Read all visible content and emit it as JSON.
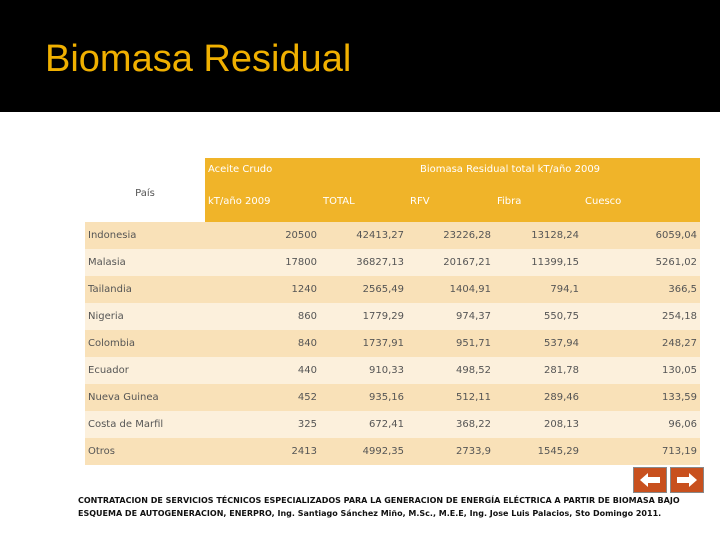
{
  "header": {
    "title": "Biomasa Residual"
  },
  "table": {
    "header": {
      "country": "País",
      "group1": "Aceite Crudo",
      "group2": "Biomasa Residual total kT/año 2009",
      "columns": [
        "kT/año 2009",
        "TOTAL",
        "RFV",
        "Fibra",
        "Cuesco"
      ]
    },
    "rows": [
      [
        "Indonesia",
        "20500",
        "42413,27",
        "23226,28",
        "13128,24",
        "6059,04"
      ],
      [
        "Malasia",
        "17800",
        "36827,13",
        "20167,21",
        "11399,15",
        "5261,02"
      ],
      [
        "Tailandia",
        "1240",
        "2565,49",
        "1404,91",
        "794,1",
        "366,5"
      ],
      [
        "Nigeria",
        "860",
        "1779,29",
        "974,37",
        "550,75",
        "254,18"
      ],
      [
        "Colombia",
        "840",
        "1737,91",
        "951,71",
        "537,94",
        "248,27"
      ],
      [
        "Ecuador",
        "440",
        "910,33",
        "498,52",
        "281,78",
        "130,05"
      ],
      [
        "Nueva Guinea",
        "452",
        "935,16",
        "512,11",
        "289,46",
        "133,59"
      ],
      [
        "Costa de Marfil",
        "325",
        "672,41",
        "368,22",
        "208,13",
        "96,06"
      ],
      [
        "Otros",
        "2413",
        "4992,35",
        "2733,9",
        "1545,29",
        "713,19"
      ]
    ]
  },
  "footer": "CONTRATACION DE SERVICIOS TÉCNICOS ESPECIALIZADOS PARA LA GENERACION DE ENERGÍA ELÉCTRICA A PARTIR DE BIOMASA BAJO ESQUEMA DE AUTOGENERACION, ENERPRO, Ing. Santiago Sánchez Miño, M.Sc., M.E.E, Ing. Jose Luis Palacios, Sto Domingo 2011."
}
